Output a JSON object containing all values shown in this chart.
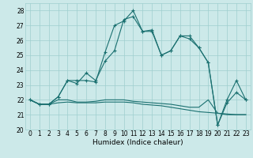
{
  "xlabel": "Humidex (Indice chaleur)",
  "xlim": [
    -0.5,
    23.5
  ],
  "ylim": [
    20,
    28.5
  ],
  "yticks": [
    20,
    21,
    22,
    23,
    24,
    25,
    26,
    27,
    28
  ],
  "xticks": [
    0,
    1,
    2,
    3,
    4,
    5,
    6,
    7,
    8,
    9,
    10,
    11,
    12,
    13,
    14,
    15,
    16,
    17,
    18,
    19,
    20,
    21,
    22,
    23
  ],
  "bg_color": "#cce9e9",
  "grid_color": "#9fcfcf",
  "line_color": "#1a7070",
  "line1": [
    22.0,
    21.7,
    21.7,
    22.2,
    23.3,
    23.3,
    23.3,
    23.2,
    25.2,
    27.0,
    27.3,
    28.0,
    26.6,
    26.7,
    25.0,
    25.3,
    26.3,
    26.3,
    25.5,
    24.5,
    20.3,
    21.8,
    22.5,
    22.0
  ],
  "line2": [
    22.0,
    21.7,
    21.7,
    22.2,
    23.3,
    23.1,
    23.8,
    23.3,
    24.6,
    25.3,
    27.4,
    27.6,
    26.6,
    26.6,
    25.0,
    25.3,
    26.3,
    26.1,
    25.5,
    24.5,
    20.3,
    22.0,
    23.3,
    22.0
  ],
  "line3": [
    22.0,
    21.7,
    21.7,
    22.0,
    22.0,
    21.85,
    21.85,
    21.9,
    22.0,
    22.0,
    22.0,
    21.9,
    21.85,
    21.8,
    21.75,
    21.7,
    21.6,
    21.5,
    21.5,
    22.0,
    21.1,
    21.0,
    21.0,
    21.0
  ],
  "line4": [
    22.0,
    21.7,
    21.7,
    21.8,
    21.85,
    21.8,
    21.8,
    21.8,
    21.85,
    21.85,
    21.85,
    21.8,
    21.7,
    21.65,
    21.6,
    21.5,
    21.4,
    21.3,
    21.2,
    21.15,
    21.1,
    21.05,
    21.0,
    21.0
  ]
}
